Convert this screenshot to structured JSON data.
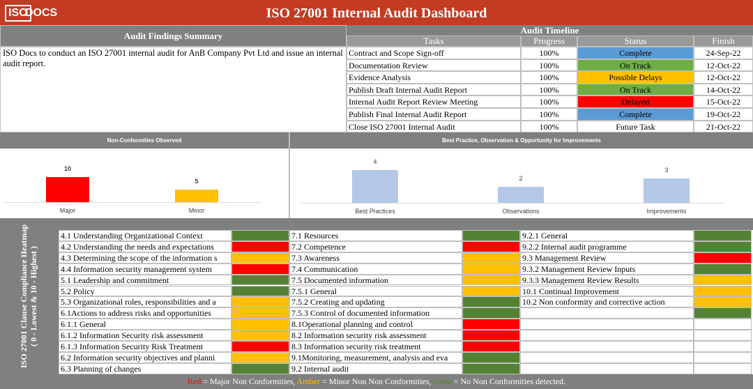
{
  "header": {
    "logo_iso": "ISO",
    "logo_docs": "DOCS",
    "title": "ISO 27001 Internal Audit Dashboard"
  },
  "findings": {
    "title": "Audit Findings Summary",
    "text": "ISO Docs to conduct an ISO 27001 internal audit for AnB Company Pvt Ltd and issue an internal audit report."
  },
  "timeline": {
    "title": "Audit Timeline",
    "columns": [
      "Tasks",
      "Progress",
      "Status",
      "Finish"
    ],
    "rows": [
      {
        "task": "Contract and Scope Sign-off",
        "progress": "100%",
        "status": "Complete",
        "status_color": "#5b9bd5",
        "finish": "24-Sep-22"
      },
      {
        "task": "Documentation Review",
        "progress": "100%",
        "status": "On Track",
        "status_color": "#70ad47",
        "finish": "12-Oct-22"
      },
      {
        "task": "Evidence Analysis",
        "progress": "100%",
        "status": "Possible Delays",
        "status_color": "#ffc000",
        "finish": "12-Oct-22"
      },
      {
        "task": "Publish Draft Internal Audit Report",
        "progress": "100%",
        "status": "On Track",
        "status_color": "#70ad47",
        "finish": "14-Oct-22"
      },
      {
        "task": "Internal Audit Report Review Meeting",
        "progress": "100%",
        "status": "Delayed",
        "status_color": "#ff0000",
        "finish": "15-Oct-22"
      },
      {
        "task": "Publish Final Internal Audit Report",
        "progress": "100%",
        "status": "Complete",
        "status_color": "#5b9bd5",
        "finish": "19-Oct-22"
      },
      {
        "task": "Close ISO 27001 Internal Audit",
        "progress": "100%",
        "status": "Future Task",
        "status_color": "#ffffff",
        "finish": "21-Oct-22"
      }
    ]
  },
  "chart_data": [
    {
      "type": "bar",
      "title": "Non-Conformities Observed",
      "categories": [
        "Major",
        "Minor"
      ],
      "values": [
        10,
        5
      ],
      "colors": [
        "#ff0000",
        "#ffc000"
      ]
    },
    {
      "type": "bar",
      "title": "Best Practice, Observation & Opportunity for Improvements",
      "categories": [
        "Best Practices",
        "Observations",
        "Improvements"
      ],
      "values": [
        4,
        2,
        3
      ],
      "colors": [
        "#b4c7e7",
        "#b4c7e7",
        "#b4c7e7"
      ]
    }
  ],
  "heatmap": {
    "title": "ISO 27001 Clause Compliance Heatmap",
    "subtitle": "( 0 - Lowest & 10 - Highest )",
    "columns": [
      [
        {
          "label": "4.1 Understanding Organizational Context",
          "color": "#548235"
        },
        {
          "label": "4.2 Understanding the needs and expectations",
          "color": "#ff0000"
        },
        {
          "label": "4.3 Determining the scope of the information s",
          "color": "#ffc000"
        },
        {
          "label": "4.4 Information security management system",
          "color": "#ff0000"
        },
        {
          "label": "5.1 Leadership and commitment",
          "color": "#548235"
        },
        {
          "label": "5.2 Policy",
          "color": "#548235"
        },
        {
          "label": "5.3 Organizational roles, responsibilities and a",
          "color": "#ffc000"
        },
        {
          "label": "6.1Actions to address risks and opportunities",
          "color": "#ffc000"
        },
        {
          "label": "6.1.1 General",
          "color": "#ffc000"
        },
        {
          "label": "6.1.2 Information Security risk assessment",
          "color": "#ffc000"
        },
        {
          "label": "6.1.3 Information Security Risk Treatment",
          "color": "#ff0000"
        },
        {
          "label": "6.2 Information security objectives and planni",
          "color": "#ffc000"
        },
        {
          "label": "6.3 Planning of changes",
          "color": "#548235"
        }
      ],
      [
        {
          "label": "7.1 Resources",
          "color": "#548235"
        },
        {
          "label": "7.2 Competence",
          "color": "#ff0000"
        },
        {
          "label": "7.3 Awareness",
          "color": "#ffc000"
        },
        {
          "label": "7.4 Communication",
          "color": "#ffc000"
        },
        {
          "label": "7.5 Documented information",
          "color": "#ffc000"
        },
        {
          "label": "7.5.1 General",
          "color": "#ffc000"
        },
        {
          "label": "7.5.2 Creating and updating",
          "color": "#548235"
        },
        {
          "label": "7.5.3 Control of documented information",
          "color": "#548235"
        },
        {
          "label": "8.1Operational planning and control",
          "color": "#ff0000"
        },
        {
          "label": "8.2 Information security risk assessment",
          "color": "#ff0000"
        },
        {
          "label": "8.3 Information security risk treatment",
          "color": "#ff0000"
        },
        {
          "label": "9.1Monitoring, measurement, analysis and eva",
          "color": "#548235"
        },
        {
          "label": "9.2 Internal audit",
          "color": "#548235"
        }
      ],
      [
        {
          "label": "9.2.1 General",
          "color": "#548235"
        },
        {
          "label": "9.2.2 Internal audit programme",
          "color": "#548235"
        },
        {
          "label": "9.3 Management Review",
          "color": "#ff0000"
        },
        {
          "label": "9.3.2 Management Review Inputs",
          "color": "#548235"
        },
        {
          "label": "9.3.3 Management Review Results",
          "color": "#ffc000"
        },
        {
          "label": "10.1 Continual Improvement",
          "color": "#ffc000"
        },
        {
          "label": "10.2 Non conformity and corrective action",
          "color": "#ffc000"
        },
        {
          "color": "#548235"
        }
      ]
    ]
  },
  "legend": [
    {
      "text": "Red",
      "color": "#ff0000"
    },
    {
      "text": " = Major Non Conformities, ",
      "color": "#ffffff"
    },
    {
      "text": "Amber",
      "color": "#ffc000"
    },
    {
      "text": " = Minor Non Non Conformities,",
      "color": "#ffffff"
    },
    {
      "text": "Green",
      "color": "#548235"
    },
    {
      "text": " = No Non Conformities detected.",
      "color": "#ffffff"
    }
  ]
}
